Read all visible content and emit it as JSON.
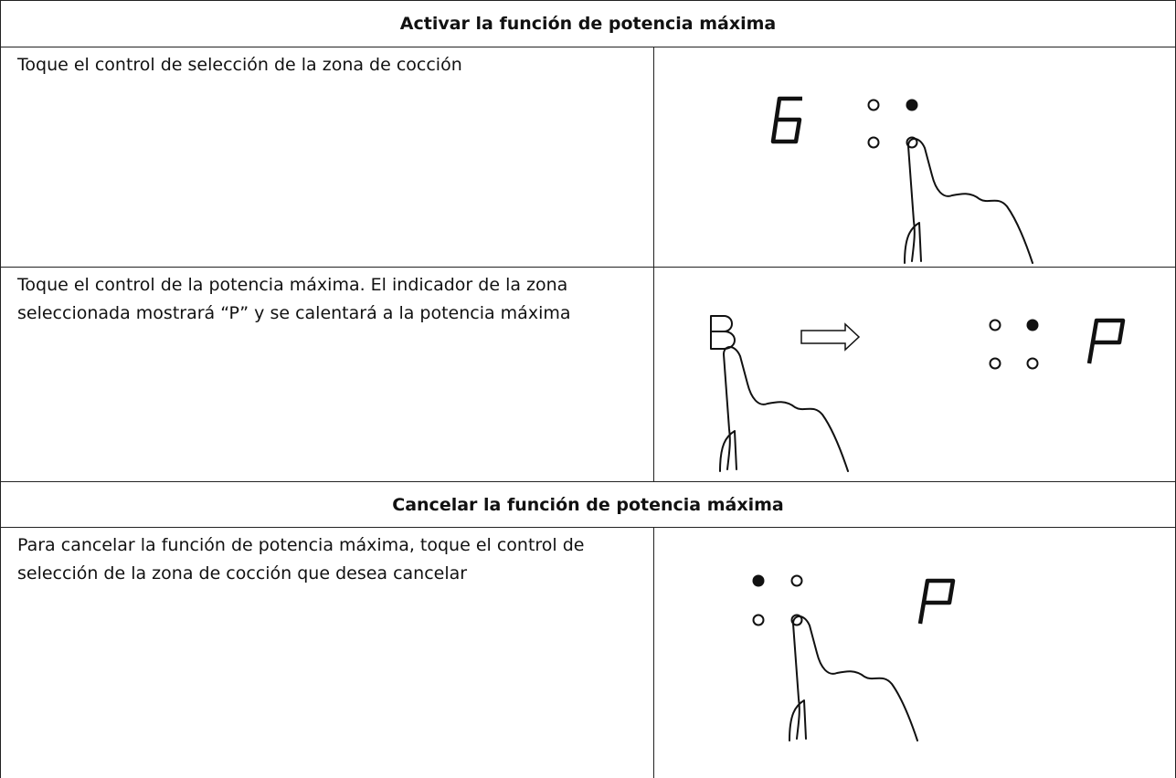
{
  "sections": [
    {
      "title": "Activar la función de potencia máxima",
      "steps": [
        {
          "text": "Toque el control de selección de la zona de cocción"
        },
        {
          "text": "Toque el control de la potencia máxima. El indicador de la zona seleccionada mostrará “P” y se calentará a la potencia máxima"
        }
      ]
    },
    {
      "title": "Cancelar la función de potencia máxima",
      "steps": [
        {
          "text": "Para cancelar la función de potencia máxima, toque el control de selección de la zona de cocción que desea cancelar"
        }
      ]
    }
  ]
}
